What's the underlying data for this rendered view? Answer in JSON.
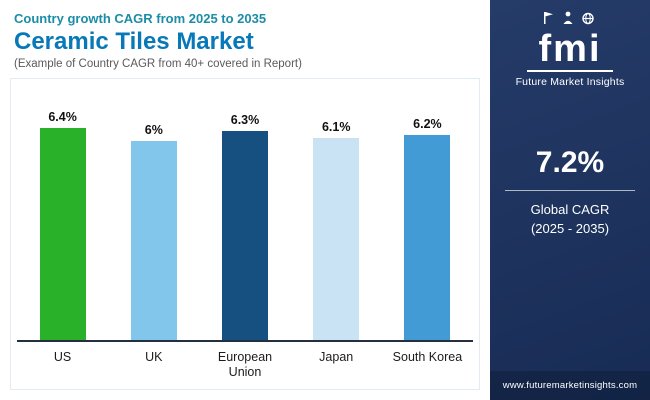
{
  "header": {
    "eyebrow": "Country growth CAGR from 2025 to 2035",
    "title": "Ceramic Tiles Market",
    "subtitle": "(Example of Country CAGR from 40+ covered in Report)"
  },
  "chart_data": {
    "type": "bar",
    "title": "Ceramic Tiles Market - Country growth CAGR from 2025 to 2035",
    "categories": [
      "US",
      "UK",
      "European Union",
      "Japan",
      "South Korea"
    ],
    "values": [
      6.4,
      6.0,
      6.3,
      6.1,
      6.2
    ],
    "value_labels": [
      "6.4%",
      "6%",
      "6.3%",
      "6.1%",
      "6.2%"
    ],
    "bar_colors": [
      "#29b229",
      "#82c6ec",
      "#165080",
      "#c9e2f4",
      "#429bd4"
    ],
    "xlabel": "",
    "ylabel": "",
    "ylim": [
      0,
      7
    ],
    "grid": false,
    "legend": "none"
  },
  "sidebar": {
    "logo_text": "fmi",
    "brand": "Future Market Insights",
    "stat_value": "7.2%",
    "stat_label_line1": "Global CAGR",
    "stat_label_line2": "(2025 - 2035)",
    "website": "www.futuremarketinsights.com"
  },
  "colors": {
    "accent_teal": "#1b8da8",
    "title_blue": "#0879b8",
    "sidebar_bg": "#1a3160",
    "axis": "#22303f"
  }
}
